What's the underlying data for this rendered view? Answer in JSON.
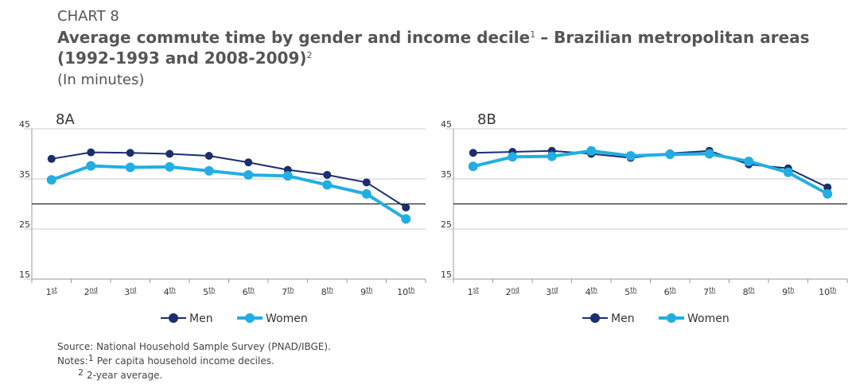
{
  "header": {
    "label": "CHART 8",
    "title": [
      "Average commute time by gender and income decile",
      "1",
      "– Brazilian metropolitan areas",
      "(1992-1993 and 2008-2009)",
      "2"
    ],
    "unit": "(In minutes)"
  },
  "chart_data": [
    {
      "type": "line",
      "title": "8A",
      "categories": [
        "1st",
        "2nd",
        "3rd",
        "4th",
        "5th",
        "6th",
        "7th",
        "8th",
        "9th",
        "10th"
      ],
      "series": [
        {
          "name": "Men",
          "color": "#1b2f6e",
          "values": [
            39,
            40.3,
            40.2,
            40,
            39.6,
            38.3,
            36.8,
            35.8,
            34.3,
            29.3
          ]
        },
        {
          "name": "Women",
          "color": "#22aee3",
          "values": [
            34.8,
            37.6,
            37.3,
            37.4,
            36.6,
            35.8,
            35.6,
            33.8,
            32,
            27
          ]
        }
      ],
      "ylim": [
        15,
        45
      ],
      "yticks": [
        15,
        25,
        35,
        45
      ],
      "reference_line": 30,
      "grid": true
    },
    {
      "type": "line",
      "title": "8B",
      "categories": [
        "1st",
        "2nd",
        "3rd",
        "4th",
        "5th",
        "6th",
        "7th",
        "8th",
        "9th",
        "10th"
      ],
      "series": [
        {
          "name": "Men",
          "color": "#1b2f6e",
          "values": [
            40.2,
            40.4,
            40.6,
            40,
            39.2,
            40.1,
            40.6,
            37.9,
            37.1,
            33.3
          ]
        },
        {
          "name": "Women",
          "color": "#22aee3",
          "values": [
            37.5,
            39.4,
            39.5,
            40.6,
            39.6,
            39.9,
            40,
            38.5,
            36.3,
            32
          ]
        }
      ],
      "ylim": [
        15,
        45
      ],
      "yticks": [
        15,
        25,
        35,
        45
      ],
      "reference_line": 30,
      "grid": true
    }
  ],
  "footer": {
    "source": "Source: National Household Sample Survey (PNAD/IBGE).",
    "notes_label": "Notes:",
    "note1_mark": "1",
    "note1": "Per capita household income deciles.",
    "note2_mark": "2",
    "note2": "2-year average."
  }
}
